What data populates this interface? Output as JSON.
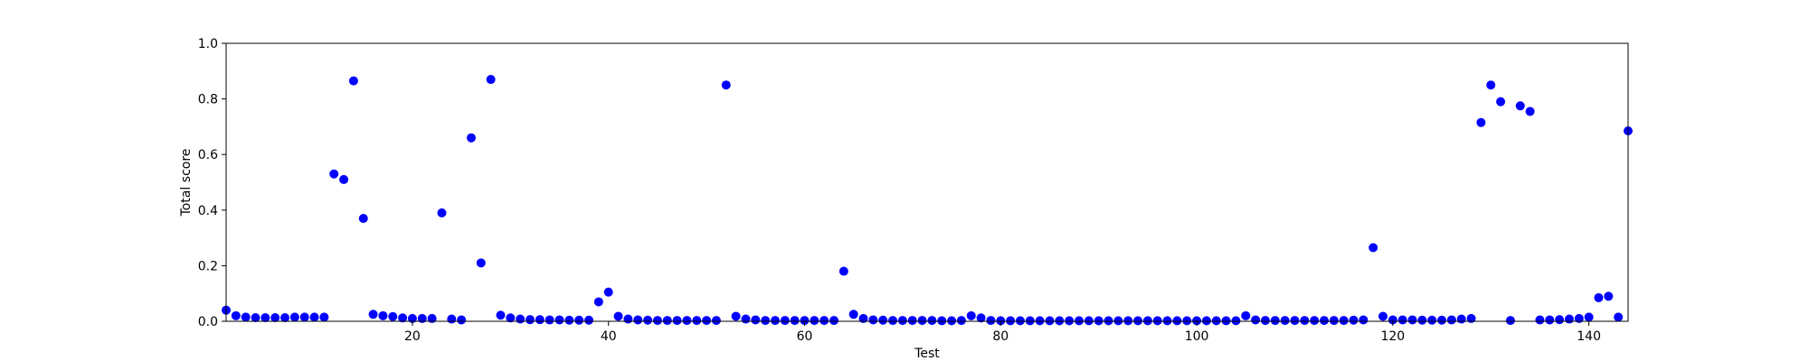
{
  "chart_data": {
    "type": "scatter",
    "xlabel": "Test",
    "ylabel": "Total score",
    "xlim": [
      1,
      144
    ],
    "ylim": [
      0.0,
      1.0
    ],
    "x_ticks": [
      20,
      40,
      60,
      80,
      100,
      120,
      140
    ],
    "x_tick_labels": [
      "20",
      "40",
      "60",
      "80",
      "100",
      "120",
      "140"
    ],
    "y_ticks": [
      0.0,
      0.2,
      0.4,
      0.6,
      0.8,
      1.0
    ],
    "y_tick_labels": [
      "0.0",
      "0.2",
      "0.4",
      "0.6",
      "0.8",
      "1.0"
    ],
    "grid": false,
    "marker_color": "#0000ff",
    "series": [
      {
        "x": [
          1,
          2,
          3,
          4,
          5,
          6,
          7,
          8,
          9,
          10,
          11,
          12,
          13,
          14,
          15,
          16,
          17,
          18,
          19,
          20,
          21,
          22,
          23,
          24,
          25,
          26,
          27,
          28,
          29,
          30,
          31,
          32,
          33,
          34,
          35,
          36,
          37,
          38,
          39,
          40,
          41,
          42,
          43,
          44,
          45,
          46,
          47,
          48,
          49,
          50,
          51,
          52,
          53,
          54,
          55,
          56,
          57,
          58,
          59,
          60,
          61,
          62,
          63,
          64,
          65,
          66,
          67,
          68,
          69,
          70,
          71,
          72,
          73,
          74,
          75,
          76,
          77,
          78,
          79,
          80,
          81,
          82,
          83,
          84,
          85,
          86,
          87,
          88,
          89,
          90,
          91,
          92,
          93,
          94,
          95,
          96,
          97,
          98,
          99,
          100,
          101,
          102,
          103,
          104,
          105,
          106,
          107,
          108,
          109,
          110,
          111,
          112,
          113,
          114,
          115,
          116,
          117,
          118,
          119,
          120,
          121,
          122,
          123,
          124,
          125,
          126,
          127,
          128,
          129,
          130,
          131,
          132,
          133,
          134,
          135,
          136,
          137,
          138,
          139,
          140,
          141,
          142,
          143,
          144
        ],
        "y": [
          0.04,
          0.02,
          0.015,
          0.013,
          0.013,
          0.013,
          0.013,
          0.015,
          0.015,
          0.015,
          0.015,
          0.53,
          0.51,
          0.865,
          0.37,
          0.025,
          0.02,
          0.017,
          0.012,
          0.01,
          0.01,
          0.01,
          0.39,
          0.008,
          0.005,
          0.66,
          0.21,
          0.87,
          0.022,
          0.012,
          0.008,
          0.006,
          0.006,
          0.005,
          0.005,
          0.004,
          0.004,
          0.004,
          0.07,
          0.105,
          0.018,
          0.008,
          0.005,
          0.004,
          0.003,
          0.003,
          0.003,
          0.003,
          0.003,
          0.003,
          0.003,
          0.85,
          0.018,
          0.008,
          0.005,
          0.003,
          0.003,
          0.003,
          0.003,
          0.003,
          0.003,
          0.003,
          0.003,
          0.18,
          0.025,
          0.01,
          0.005,
          0.004,
          0.003,
          0.003,
          0.003,
          0.003,
          0.003,
          0.002,
          0.002,
          0.003,
          0.02,
          0.012,
          0.003,
          0.002,
          0.002,
          0.002,
          0.002,
          0.002,
          0.002,
          0.002,
          0.002,
          0.002,
          0.002,
          0.002,
          0.002,
          0.002,
          0.002,
          0.002,
          0.002,
          0.002,
          0.002,
          0.002,
          0.002,
          0.002,
          0.002,
          0.002,
          0.002,
          0.002,
          0.02,
          0.005,
          0.003,
          0.003,
          0.003,
          0.003,
          0.003,
          0.003,
          0.003,
          0.003,
          0.003,
          0.004,
          0.005,
          0.265,
          0.018,
          0.005,
          0.005,
          0.005,
          0.004,
          0.004,
          0.004,
          0.005,
          0.008,
          0.01,
          0.715,
          0.85,
          0.79,
          0.003,
          0.775,
          0.755,
          0.005,
          0.005,
          0.006,
          0.008,
          0.01,
          0.015,
          0.085,
          0.09,
          0.015,
          0.685
        ]
      }
    ]
  }
}
